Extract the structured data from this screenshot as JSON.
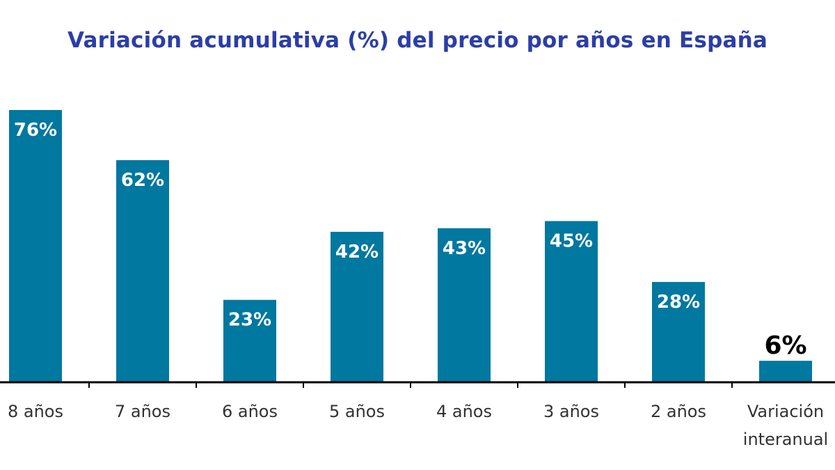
{
  "chart_data": {
    "type": "bar",
    "title": "Variación acumulativa (%) del precio por años en España",
    "categories": [
      "8 años",
      "7 años",
      "6 años",
      "5 años",
      "4 años",
      "3 años",
      "2 años",
      "Variación interanual"
    ],
    "category_lines": [
      [
        "8 años"
      ],
      [
        "7 años"
      ],
      [
        "6 años"
      ],
      [
        "5 años"
      ],
      [
        "4 años"
      ],
      [
        "3 años"
      ],
      [
        "2 años"
      ],
      [
        "Variación",
        "interanual"
      ]
    ],
    "values": [
      76,
      62,
      23,
      42,
      43,
      45,
      28,
      6
    ],
    "value_labels": [
      "76%",
      "62%",
      "23%",
      "42%",
      "43%",
      "45%",
      "28%",
      "6%"
    ],
    "ylim": [
      0,
      80
    ],
    "grid": false,
    "legend": "none",
    "colors": {
      "bar": "#00789f",
      "title": "#2b3ea8",
      "axis": "#000000",
      "label_inside": "#ffffff",
      "label_outside": "#000000",
      "tick_text": "#333333"
    }
  }
}
